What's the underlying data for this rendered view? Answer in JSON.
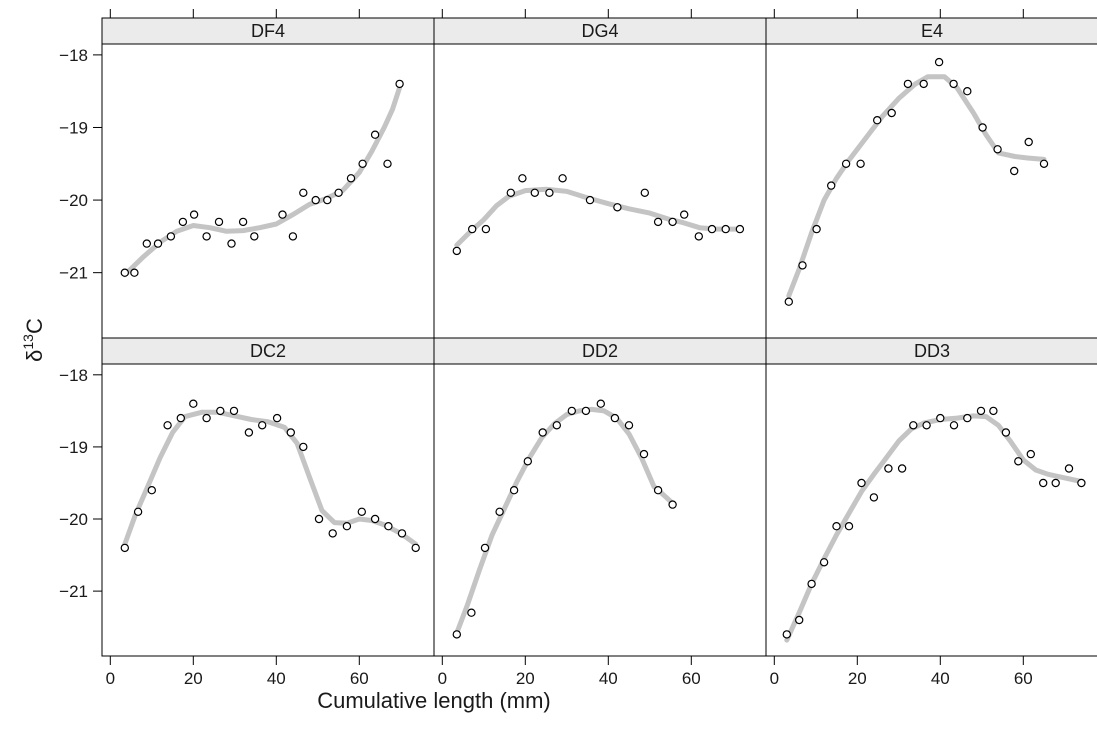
{
  "chart_data": {
    "type": "scatter",
    "layout": "lattice 3 columns x 2 rows",
    "xlabel": "Cumulative length (mm)",
    "ylabel": "δ¹³C",
    "ylabel_parts": {
      "base": "δ",
      "sup": "13",
      "rest": "C"
    },
    "xlim": [
      -2,
      78
    ],
    "ylim": [
      -21.9,
      -17.85
    ],
    "x_ticks": [
      0,
      20,
      40,
      60
    ],
    "y_ticks": [
      -18,
      -19,
      -20,
      -21
    ],
    "colors": {
      "points": "#000000",
      "smooth": "#c4c4c4",
      "strip": "#ebebeb",
      "frame": "#000000"
    },
    "panels": [
      {
        "name": "DF4",
        "points": [
          [
            3.5,
            -21.0
          ],
          [
            5.8,
            -21.0
          ],
          [
            8.8,
            -20.6
          ],
          [
            11.5,
            -20.6
          ],
          [
            14.6,
            -20.5
          ],
          [
            17.5,
            -20.3
          ],
          [
            20.2,
            -20.2
          ],
          [
            23.2,
            -20.5
          ],
          [
            26.2,
            -20.3
          ],
          [
            29.2,
            -20.6
          ],
          [
            32.0,
            -20.3
          ],
          [
            34.7,
            -20.5
          ],
          [
            41.5,
            -20.2
          ],
          [
            44.0,
            -20.5
          ],
          [
            46.5,
            -19.9
          ],
          [
            49.5,
            -20.0
          ],
          [
            52.3,
            -20.0
          ],
          [
            55.0,
            -19.9
          ],
          [
            58.0,
            -19.7
          ],
          [
            60.8,
            -19.5
          ],
          [
            63.8,
            -19.1
          ],
          [
            66.8,
            -19.5
          ],
          [
            69.7,
            -18.4
          ]
        ],
        "smooth": [
          [
            3.5,
            -21.03
          ],
          [
            8,
            -20.78
          ],
          [
            12,
            -20.58
          ],
          [
            16,
            -20.43
          ],
          [
            20,
            -20.35
          ],
          [
            24,
            -20.38
          ],
          [
            28,
            -20.43
          ],
          [
            32,
            -20.42
          ],
          [
            36,
            -20.38
          ],
          [
            40,
            -20.33
          ],
          [
            44,
            -20.2
          ],
          [
            48,
            -20.06
          ],
          [
            52,
            -19.98
          ],
          [
            56,
            -19.87
          ],
          [
            60,
            -19.62
          ],
          [
            63,
            -19.33
          ],
          [
            66,
            -19.0
          ],
          [
            68,
            -18.75
          ],
          [
            69.7,
            -18.45
          ]
        ]
      },
      {
        "name": "DG4",
        "points": [
          [
            3.5,
            -20.7
          ],
          [
            7.2,
            -20.4
          ],
          [
            10.5,
            -20.4
          ],
          [
            16.5,
            -19.9
          ],
          [
            19.3,
            -19.7
          ],
          [
            22.3,
            -19.9
          ],
          [
            25.8,
            -19.9
          ],
          [
            29.0,
            -19.7
          ],
          [
            35.6,
            -20.0
          ],
          [
            42.2,
            -20.1
          ],
          [
            48.8,
            -19.9
          ],
          [
            52.0,
            -20.3
          ],
          [
            55.5,
            -20.3
          ],
          [
            58.3,
            -20.2
          ],
          [
            61.8,
            -20.5
          ],
          [
            65.0,
            -20.4
          ],
          [
            68.3,
            -20.4
          ],
          [
            71.7,
            -20.4
          ]
        ],
        "smooth": [
          [
            3.5,
            -20.62
          ],
          [
            7,
            -20.42
          ],
          [
            10,
            -20.27
          ],
          [
            13,
            -20.08
          ],
          [
            16,
            -19.95
          ],
          [
            20,
            -19.87
          ],
          [
            25,
            -19.85
          ],
          [
            30,
            -19.88
          ],
          [
            35,
            -19.97
          ],
          [
            40,
            -20.05
          ],
          [
            45,
            -20.12
          ],
          [
            50,
            -20.18
          ],
          [
            55,
            -20.27
          ],
          [
            58,
            -20.31
          ],
          [
            62,
            -20.38
          ],
          [
            66,
            -20.4
          ],
          [
            71.7,
            -20.4
          ]
        ]
      },
      {
        "name": "E4",
        "points": [
          [
            3.5,
            -21.4
          ],
          [
            6.8,
            -20.9
          ],
          [
            10.2,
            -20.4
          ],
          [
            13.7,
            -19.8
          ],
          [
            17.3,
            -19.5
          ],
          [
            20.8,
            -19.5
          ],
          [
            24.8,
            -18.9
          ],
          [
            28.3,
            -18.8
          ],
          [
            32.2,
            -18.4
          ],
          [
            36.0,
            -18.4
          ],
          [
            39.7,
            -18.1
          ],
          [
            43.2,
            -18.4
          ],
          [
            46.5,
            -18.5
          ],
          [
            50.2,
            -19.0
          ],
          [
            53.8,
            -19.3
          ],
          [
            57.8,
            -19.6
          ],
          [
            61.3,
            -19.2
          ],
          [
            65.0,
            -19.5
          ]
        ],
        "smooth": [
          [
            3.5,
            -21.32
          ],
          [
            6,
            -20.95
          ],
          [
            9,
            -20.45
          ],
          [
            12,
            -20.0
          ],
          [
            15,
            -19.7
          ],
          [
            18,
            -19.45
          ],
          [
            22,
            -19.15
          ],
          [
            26,
            -18.85
          ],
          [
            30,
            -18.6
          ],
          [
            34,
            -18.4
          ],
          [
            37,
            -18.3
          ],
          [
            41,
            -18.3
          ],
          [
            44,
            -18.45
          ],
          [
            48,
            -18.8
          ],
          [
            51,
            -19.1
          ],
          [
            54,
            -19.35
          ],
          [
            58,
            -19.4
          ],
          [
            61,
            -19.42
          ],
          [
            65,
            -19.44
          ]
        ]
      },
      {
        "name": "DC2",
        "points": [
          [
            3.5,
            -20.4
          ],
          [
            6.7,
            -19.9
          ],
          [
            10.0,
            -19.6
          ],
          [
            13.8,
            -18.7
          ],
          [
            17.0,
            -18.6
          ],
          [
            20.0,
            -18.4
          ],
          [
            23.2,
            -18.6
          ],
          [
            26.5,
            -18.5
          ],
          [
            29.8,
            -18.5
          ],
          [
            33.4,
            -18.8
          ],
          [
            36.6,
            -18.7
          ],
          [
            40.2,
            -18.6
          ],
          [
            43.5,
            -18.8
          ],
          [
            46.5,
            -19.0
          ],
          [
            50.3,
            -20.0
          ],
          [
            53.6,
            -20.2
          ],
          [
            57.0,
            -20.1
          ],
          [
            60.6,
            -19.9
          ],
          [
            63.8,
            -20.0
          ],
          [
            67.0,
            -20.1
          ],
          [
            70.3,
            -20.2
          ],
          [
            73.6,
            -20.4
          ]
        ],
        "smooth": [
          [
            3.5,
            -20.35
          ],
          [
            6,
            -19.95
          ],
          [
            9,
            -19.55
          ],
          [
            12,
            -19.15
          ],
          [
            15,
            -18.8
          ],
          [
            18,
            -18.58
          ],
          [
            22,
            -18.52
          ],
          [
            26,
            -18.52
          ],
          [
            30,
            -18.57
          ],
          [
            34,
            -18.62
          ],
          [
            38,
            -18.65
          ],
          [
            42,
            -18.73
          ],
          [
            45,
            -18.95
          ],
          [
            48,
            -19.42
          ],
          [
            51,
            -19.88
          ],
          [
            54,
            -20.05
          ],
          [
            57,
            -20.06
          ],
          [
            60,
            -20.0
          ],
          [
            63,
            -20.02
          ],
          [
            66,
            -20.08
          ],
          [
            70,
            -20.2
          ],
          [
            73.6,
            -20.35
          ]
        ]
      },
      {
        "name": "DD2",
        "points": [
          [
            3.5,
            -21.6
          ],
          [
            7.0,
            -21.3
          ],
          [
            10.3,
            -20.4
          ],
          [
            13.8,
            -19.9
          ],
          [
            17.3,
            -19.6
          ],
          [
            20.6,
            -19.2
          ],
          [
            24.2,
            -18.8
          ],
          [
            27.6,
            -18.7
          ],
          [
            31.2,
            -18.5
          ],
          [
            34.6,
            -18.5
          ],
          [
            38.2,
            -18.4
          ],
          [
            41.6,
            -18.6
          ],
          [
            45.0,
            -18.7
          ],
          [
            48.6,
            -19.1
          ],
          [
            52.0,
            -19.6
          ],
          [
            55.5,
            -19.8
          ]
        ],
        "smooth": [
          [
            3.5,
            -21.58
          ],
          [
            6,
            -21.2
          ],
          [
            9,
            -20.7
          ],
          [
            12,
            -20.22
          ],
          [
            15,
            -19.85
          ],
          [
            18,
            -19.48
          ],
          [
            21,
            -19.15
          ],
          [
            24,
            -18.87
          ],
          [
            27,
            -18.68
          ],
          [
            30,
            -18.55
          ],
          [
            33,
            -18.5
          ],
          [
            36,
            -18.48
          ],
          [
            39,
            -18.5
          ],
          [
            42,
            -18.6
          ],
          [
            45,
            -18.82
          ],
          [
            48,
            -19.15
          ],
          [
            51,
            -19.55
          ],
          [
            53,
            -19.65
          ],
          [
            55.5,
            -19.78
          ]
        ]
      },
      {
        "name": "DD3",
        "points": [
          [
            3.0,
            -21.6
          ],
          [
            6.0,
            -21.4
          ],
          [
            9.0,
            -20.9
          ],
          [
            12.0,
            -20.6
          ],
          [
            15.0,
            -20.1
          ],
          [
            18.0,
            -20.1
          ],
          [
            21.0,
            -19.5
          ],
          [
            24.0,
            -19.7
          ],
          [
            27.5,
            -19.3
          ],
          [
            30.8,
            -19.3
          ],
          [
            33.5,
            -18.7
          ],
          [
            36.7,
            -18.7
          ],
          [
            40.0,
            -18.6
          ],
          [
            43.3,
            -18.7
          ],
          [
            46.5,
            -18.6
          ],
          [
            49.8,
            -18.5
          ],
          [
            52.8,
            -18.5
          ],
          [
            55.8,
            -18.8
          ],
          [
            58.8,
            -19.2
          ],
          [
            61.8,
            -19.1
          ],
          [
            64.8,
            -19.5
          ],
          [
            67.8,
            -19.5
          ],
          [
            71.0,
            -19.3
          ],
          [
            74.0,
            -19.5
          ]
        ],
        "smooth": [
          [
            3,
            -21.68
          ],
          [
            6,
            -21.3
          ],
          [
            9,
            -20.9
          ],
          [
            12,
            -20.55
          ],
          [
            15,
            -20.22
          ],
          [
            18,
            -19.92
          ],
          [
            21,
            -19.62
          ],
          [
            24,
            -19.38
          ],
          [
            27,
            -19.15
          ],
          [
            30,
            -18.92
          ],
          [
            33,
            -18.75
          ],
          [
            36,
            -18.67
          ],
          [
            40,
            -18.62
          ],
          [
            44,
            -18.6
          ],
          [
            48,
            -18.57
          ],
          [
            51,
            -18.58
          ],
          [
            54,
            -18.7
          ],
          [
            57,
            -18.93
          ],
          [
            60,
            -19.18
          ],
          [
            63,
            -19.32
          ],
          [
            66,
            -19.38
          ],
          [
            70,
            -19.43
          ],
          [
            74,
            -19.48
          ]
        ]
      }
    ]
  }
}
